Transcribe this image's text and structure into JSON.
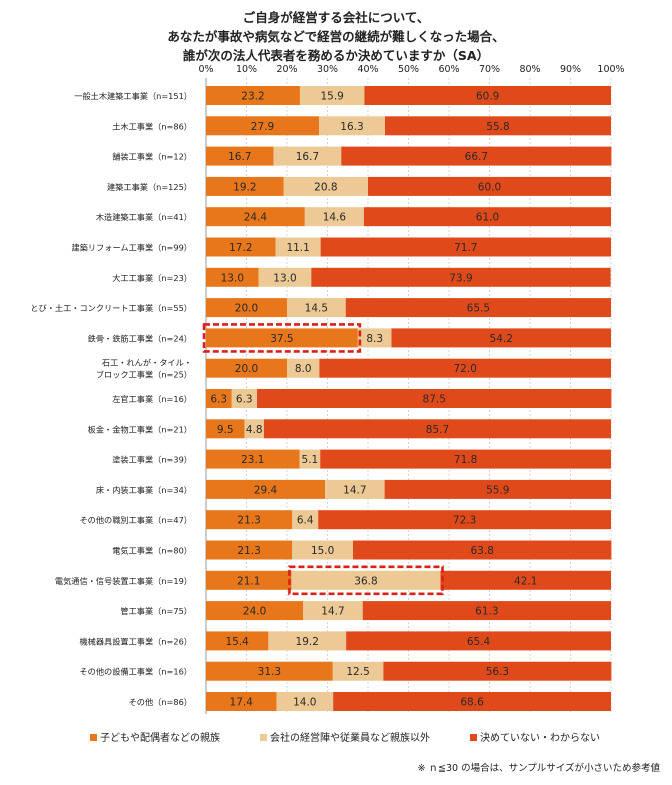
{
  "chart_data": {
    "type": "bar",
    "stacked": true,
    "orientation": "horizontal",
    "title_lines": [
      "ご自身が経営する会社について、",
      "あなたが事故や病気などで経営の継続が難しくなった場合、",
      "誰が次の法人代表者を務めるか決めていますか（SA）"
    ],
    "x_ticks": [
      "0%",
      "10%",
      "20%",
      "30%",
      "40%",
      "50%",
      "60%",
      "70%",
      "80%",
      "90%",
      "100%"
    ],
    "xlim": [
      0,
      100
    ],
    "grid": true,
    "legend_position": "bottom",
    "categories": [
      [
        "一般土木建築工事業（n=151）"
      ],
      [
        "土木工事業（n=86）"
      ],
      [
        "舗装工事業（n=12）"
      ],
      [
        "建築工事業（n=125）"
      ],
      [
        "木造建築工事業（n=41）"
      ],
      [
        "建築リフォーム工事業（n=99）"
      ],
      [
        "大工工事業（n=23）"
      ],
      [
        "とび・土工・コンクリート工事業（n=55）"
      ],
      [
        "鉄骨・鉄筋工事業（n=24）"
      ],
      [
        "石工・れんが・タイル・",
        "ブロック工事業（n=25）"
      ],
      [
        "左官工事業（n=16）"
      ],
      [
        "板金・金物工事業（n=21）"
      ],
      [
        "塗装工事業（n=39）"
      ],
      [
        "床・内装工事業（n=34）"
      ],
      [
        "その他の職別工事業（n=47）"
      ],
      [
        "電気工事業（n=80）"
      ],
      [
        "電気通信・信号装置工事業（n=19）"
      ],
      [
        "管工事業（n=75）"
      ],
      [
        "機械器具設置工事業（n=26）"
      ],
      [
        "その他の設備工事業（n=16）"
      ],
      [
        "その他（n=86）"
      ]
    ],
    "series": [
      {
        "name": "子どもや配偶者などの親族",
        "color": "#e8771c",
        "values": [
          23.2,
          27.9,
          16.7,
          19.2,
          24.4,
          17.2,
          13.0,
          20.0,
          37.5,
          20.0,
          6.3,
          9.5,
          23.1,
          29.4,
          21.3,
          21.3,
          21.1,
          24.0,
          15.4,
          31.3,
          17.4
        ],
        "labels": [
          "23.2",
          "27.9",
          "16.7",
          "19.2",
          "24.4",
          "17.2",
          "13.0",
          "20.0",
          "37.5",
          "20.0",
          "6.3",
          "9.5",
          "23.1",
          "29.4",
          "21.3",
          "21.3",
          "21.1",
          "24.0",
          "15.4",
          "31.3",
          "17.4"
        ]
      },
      {
        "name": "会社の経営陣や従業員など親族以外",
        "color": "#ecc995",
        "values": [
          15.9,
          16.3,
          16.7,
          20.8,
          14.6,
          11.1,
          13.0,
          14.5,
          8.3,
          8.0,
          6.3,
          4.8,
          5.1,
          14.7,
          6.4,
          15.0,
          36.8,
          14.7,
          19.2,
          12.5,
          14.0
        ],
        "labels": [
          "15.9",
          "16.3",
          "16.7",
          "20.8",
          "14.6",
          "11.1",
          "13.0",
          "14.5",
          "8.3",
          "8.0",
          "6.3",
          "4.8",
          "5.1",
          "14.7",
          "6.4",
          "15.0",
          "36.8",
          "14.7",
          "19.2",
          "12.5",
          "14.0"
        ]
      },
      {
        "name": "決めていない・わからない",
        "color": "#e04a1b",
        "values": [
          60.9,
          55.8,
          66.7,
          60.0,
          61.0,
          71.7,
          73.9,
          65.5,
          54.2,
          72.0,
          87.5,
          85.7,
          71.8,
          55.9,
          72.3,
          63.8,
          42.1,
          61.3,
          65.4,
          56.3,
          68.6
        ],
        "labels": [
          "60.9",
          "55.8",
          "66.7",
          "60.0",
          "61.0",
          "71.7",
          "73.9",
          "65.5",
          "54.2",
          "72.0",
          "87.5",
          "85.7",
          "71.8",
          "55.9",
          "72.3",
          "63.8",
          "42.1",
          "61.3",
          "65.4",
          "56.3",
          "68.6"
        ]
      }
    ],
    "highlights": [
      {
        "category_index": 8,
        "series_index": 0
      },
      {
        "category_index": 16,
        "series_index": 1
      }
    ],
    "highlight_color": "#d9211b"
  },
  "footnote": "※ ｎ≦30 の場合は、サンプルサイズが小さいため参考値"
}
